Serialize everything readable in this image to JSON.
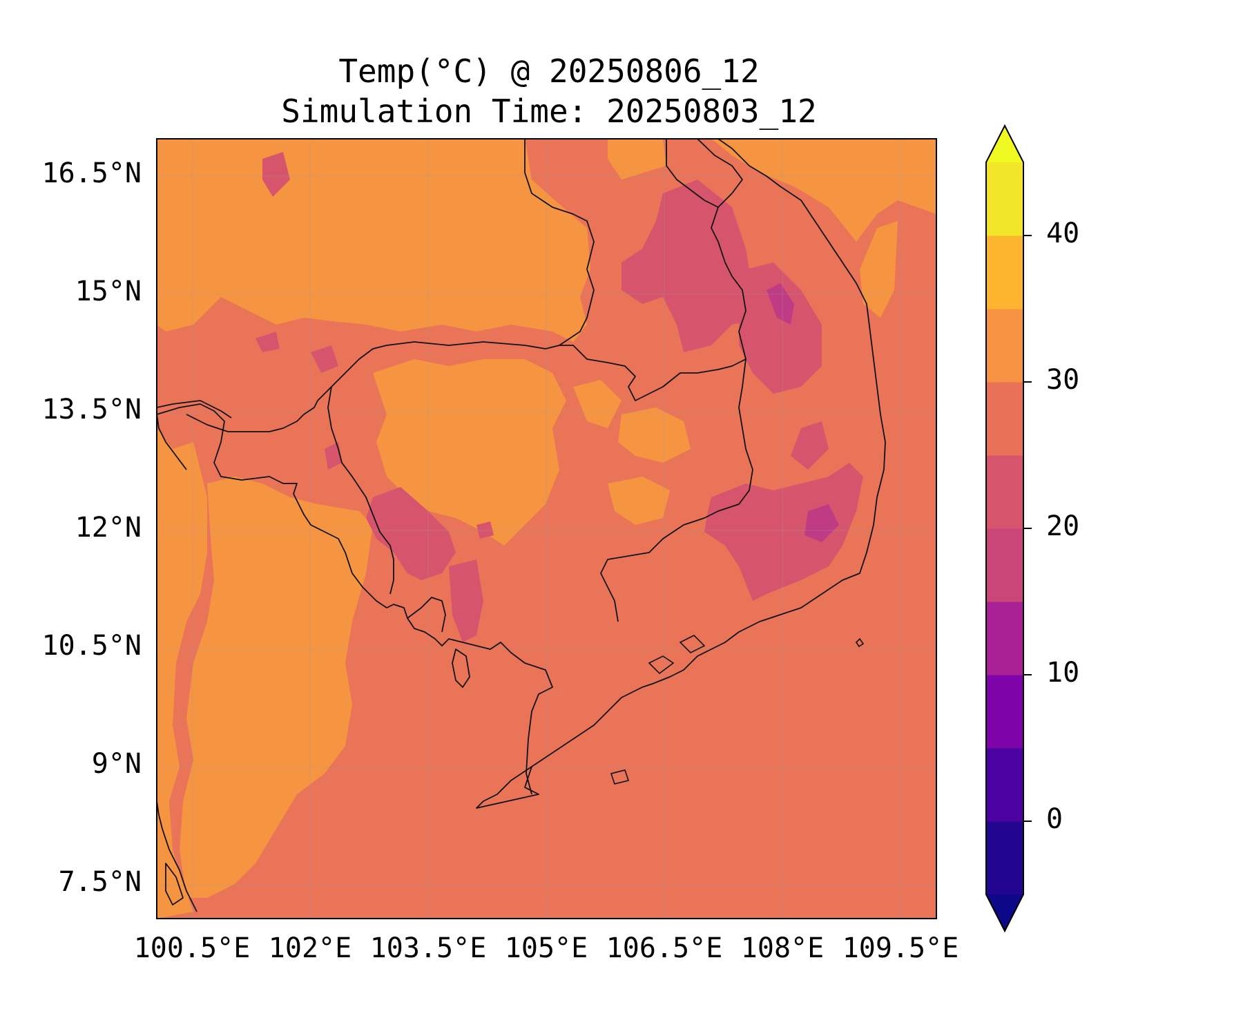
{
  "title": "Temp(°C) @ 20250806_12",
  "subtitle": "Simulation Time: 20250803_12",
  "map": {
    "lon_range": [
      100.2,
      110.1
    ],
    "lat_range": [
      7.1,
      17.0
    ],
    "lat_ticks": [
      {
        "value": 16.5,
        "label": "16.5°N"
      },
      {
        "value": 15.0,
        "label": "15°N"
      },
      {
        "value": 13.5,
        "label": "13.5°N"
      },
      {
        "value": 12.0,
        "label": "12°N"
      },
      {
        "value": 10.5,
        "label": "10.5°N"
      },
      {
        "value": 9.0,
        "label": "9°N"
      },
      {
        "value": 7.5,
        "label": "7.5°N"
      }
    ],
    "lon_ticks": [
      {
        "value": 100.5,
        "label": "100.5°E"
      },
      {
        "value": 102.0,
        "label": "102°E"
      },
      {
        "value": 103.5,
        "label": "103.5°E"
      },
      {
        "value": 105.0,
        "label": "105°E"
      },
      {
        "value": 106.5,
        "label": "106.5°E"
      },
      {
        "value": 108.0,
        "label": "108°E"
      },
      {
        "value": 109.5,
        "label": "109.5°E"
      }
    ],
    "grid": true,
    "field": "2m temperature",
    "dominant_band": "25–30",
    "warm_band": "30–35",
    "cool_band": "20–25",
    "coldest_band": "15–20"
  },
  "colorbar": {
    "levels": [
      -5,
      0,
      5,
      10,
      15,
      20,
      25,
      30,
      35,
      40,
      45
    ],
    "colors": [
      "#220690",
      "#4b02a1",
      "#7e03a8",
      "#a82296",
      "#cb4678",
      "#d6556d",
      "#e97158",
      "#f79342",
      "#fdb42f",
      "#f1e629"
    ],
    "under_color": "#0d0887",
    "over_color": "#f0f921",
    "extend": "both",
    "ticks": [
      {
        "value": 0,
        "label": "0"
      },
      {
        "value": 10,
        "label": "10"
      },
      {
        "value": 20,
        "label": "20"
      },
      {
        "value": 30,
        "label": "30"
      },
      {
        "value": 40,
        "label": "40"
      }
    ]
  },
  "colors": {
    "band_25_30": "#e97458",
    "band_30_35": "#f69541",
    "band_20_25": "#d6556d",
    "band_15_20": "#bf3b84",
    "coastline": "#111111"
  }
}
